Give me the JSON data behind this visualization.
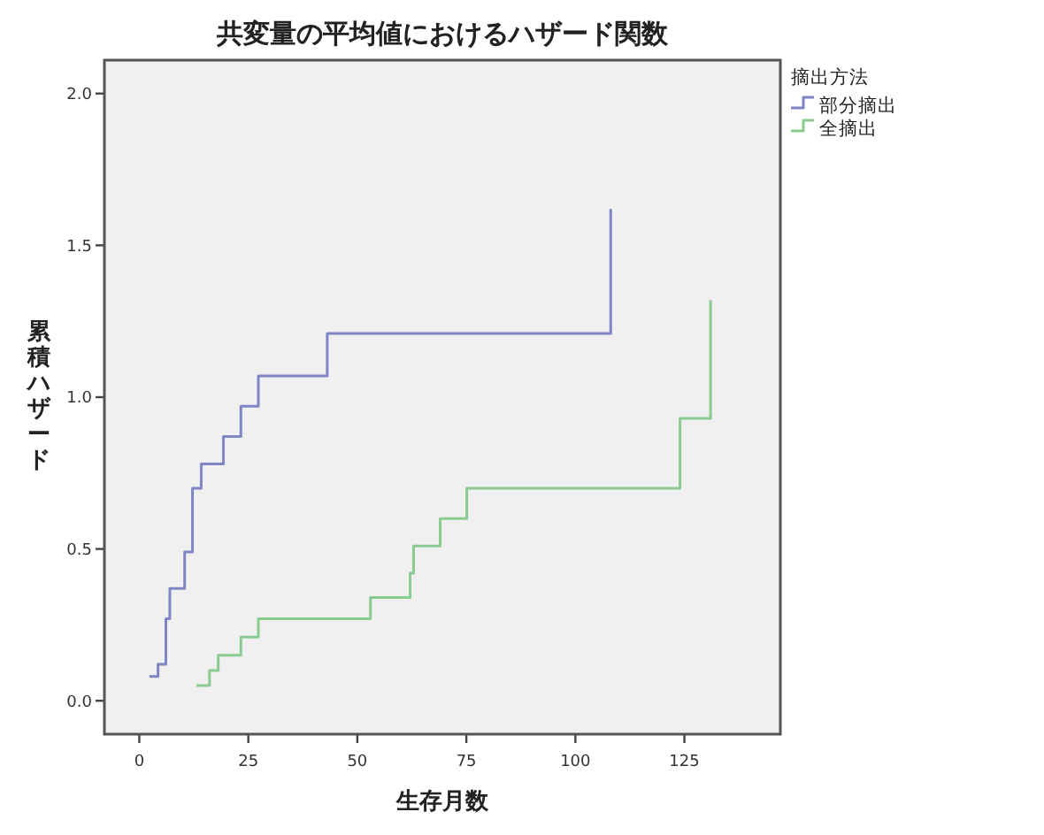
{
  "chart_data": {
    "type": "step",
    "title": "共変量の平均値におけるハザード関数",
    "xlabel": "生存月数",
    "ylabel": "累積ハザード",
    "legend_title": "摘出方法",
    "legend": "top right",
    "xlim": [
      -8,
      147
    ],
    "xticks": [
      0,
      25,
      50,
      75,
      100,
      125
    ],
    "ylim": [
      -0.11,
      2.11
    ],
    "yticks": [
      {
        "value": 0,
        "label": "0.0"
      },
      {
        "value": 0.5,
        "label": "0.5"
      },
      {
        "value": 1,
        "label": "1.0"
      },
      {
        "value": 1.5,
        "label": "1.5"
      },
      {
        "value": 2,
        "label": "2.0"
      }
    ],
    "series": [
      {
        "name": "部分摘出",
        "color": "#7f86c4",
        "x": [
          2.3,
          4.3,
          6.1,
          7.0,
          10.4,
          12.2,
          14.2,
          19.3,
          23.3,
          27.3,
          43.1,
          108.1
        ],
        "values": [
          0.08,
          0.12,
          0.27,
          0.37,
          0.49,
          0.7,
          0.78,
          0.87,
          0.97,
          1.07,
          1.21,
          1.62
        ]
      },
      {
        "name": "全摘出",
        "color": "#8acb92",
        "x": [
          13.1,
          16.1,
          18.1,
          23.3,
          27.3,
          53.0,
          62.1,
          62.9,
          69.0,
          75.1,
          124.0,
          131.0
        ],
        "values": [
          0.05,
          0.1,
          0.15,
          0.21,
          0.27,
          0.34,
          0.42,
          0.51,
          0.6,
          0.7,
          0.93,
          1.32
        ]
      }
    ]
  }
}
